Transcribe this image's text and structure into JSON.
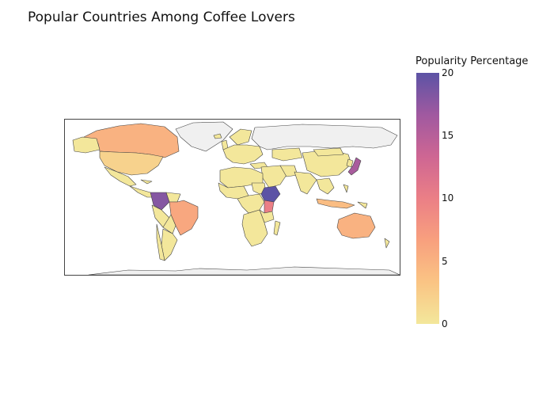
{
  "chart_data": {
    "type": "choropleth",
    "title": "Popular Countries Among Coffee Lovers",
    "colorbar": {
      "title": "Popularity Percentage",
      "range": [
        0,
        20
      ],
      "ticks": [
        "0",
        "5",
        "10",
        "15",
        "20"
      ],
      "colorscale": [
        "#f3e79b",
        "#fac484",
        "#f8a07e",
        "#eb7f86",
        "#ce6693",
        "#a059a0",
        "#5c53a5"
      ]
    },
    "no_data_color": "#f0f0f0",
    "border_color": "#444444",
    "regions": [
      {
        "name": "Ethiopia",
        "value": 20
      },
      {
        "name": "Colombia",
        "value": 18
      },
      {
        "name": "Japan",
        "value": 16
      },
      {
        "name": "Kenya",
        "value": 10
      },
      {
        "name": "Brazil",
        "value": 6
      },
      {
        "name": "Canada",
        "value": 5
      },
      {
        "name": "Australia",
        "value": 5
      },
      {
        "name": "Indonesia",
        "value": 4
      },
      {
        "name": "United States",
        "value": 2
      },
      {
        "name": "Greenland",
        "value": null
      },
      {
        "name": "Russia",
        "value": null
      },
      {
        "name": "Antarctica",
        "value": null
      }
    ],
    "default_value": 0
  }
}
